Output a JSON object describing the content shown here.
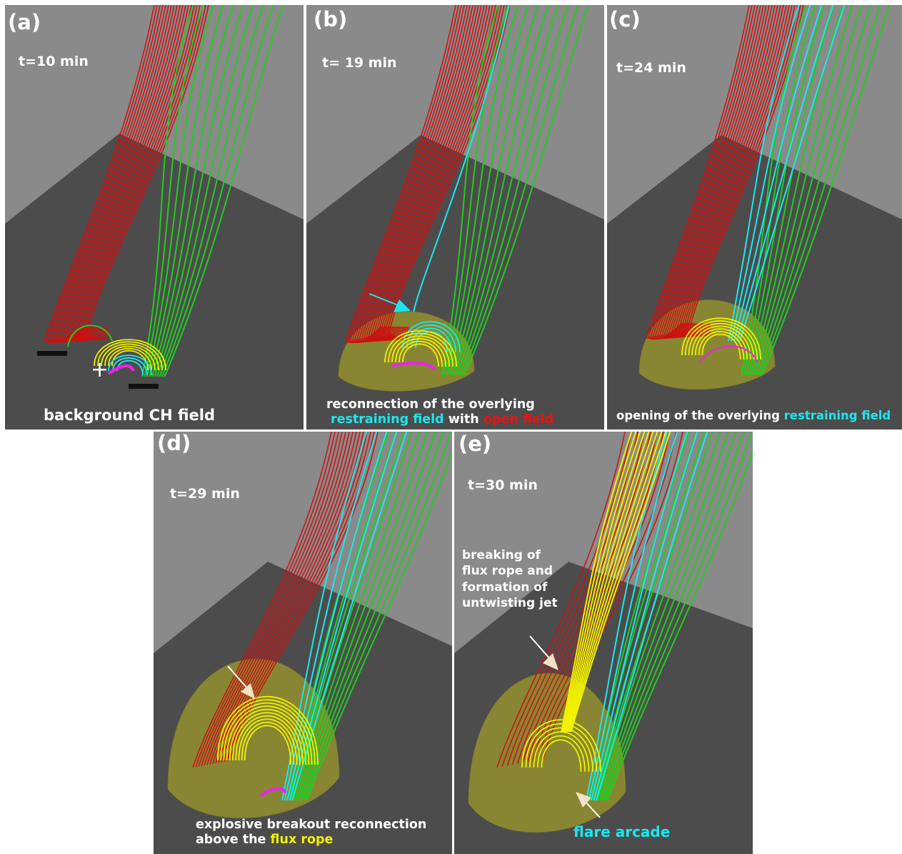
{
  "panels": [
    {
      "id": "a",
      "label": "(a)",
      "time": "t=10 min",
      "caption": {
        "line1": "background CH field"
      }
    },
    {
      "id": "b",
      "label": "(b)",
      "time": "t= 19 min",
      "caption": {
        "line1": "reconnection of the overlying",
        "pre": "restraining field",
        "mid": " with ",
        "post": "open field"
      }
    },
    {
      "id": "c",
      "label": "(c)",
      "time": "t=24 min",
      "caption": {
        "pre": "opening of the overlying ",
        "post": "restraining field"
      }
    },
    {
      "id": "d",
      "label": "(d)",
      "time": "t=29 min",
      "caption": {
        "line1": "explosive breakout reconnection",
        "pre": "above the ",
        "post": "flux rope"
      }
    },
    {
      "id": "e",
      "label": "(e)",
      "time": "t=30 min",
      "note": [
        "breaking of",
        "flux rope and",
        "formation of",
        "untwisting jet"
      ],
      "flare": "flare arcade"
    }
  ],
  "polarity_symbol": "+",
  "colors": {
    "open_field": "#cc1111",
    "closed_field": "#22cc22",
    "restraining_field": "#1ee6ee",
    "flux_rope": "#f2f200",
    "shear": "#ee22ee",
    "iso_surface": "#9c9a2a",
    "floor": "#4c4c4c",
    "sky": "#8a8a8a"
  }
}
